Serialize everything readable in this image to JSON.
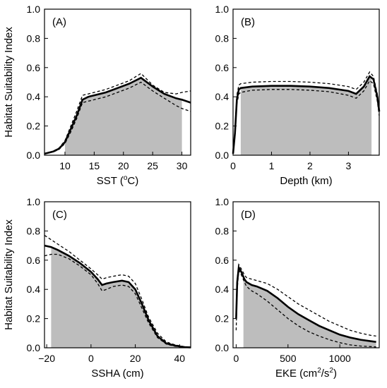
{
  "shared": {
    "ylabel": "Habitat Suitability Index"
  },
  "chart_data": [
    {
      "type": "line",
      "panel_label": "(A)",
      "xlabel_text": "SST (",
      "xlabel_sup": "o",
      "xlabel_after": "C)",
      "ylabel": "Habitat Suitability Index",
      "xlim": [
        6.5,
        31.5
      ],
      "ylim": [
        0,
        1
      ],
      "xticks": [
        10,
        15,
        20,
        25,
        30
      ],
      "yticks": [
        0.0,
        0.2,
        0.4,
        0.6,
        0.8,
        1.0
      ],
      "yticklabels": [
        "0.0",
        "0.2",
        "0.4",
        "0.6",
        "0.8",
        "1.0"
      ],
      "fill_range": [
        10,
        30
      ],
      "series": [
        {
          "role": "mean",
          "x": [
            6.5,
            7,
            8,
            9,
            10,
            11,
            12,
            13,
            14,
            15,
            17,
            19,
            21,
            23,
            25,
            27,
            29,
            30,
            31.5
          ],
          "y": [
            0.01,
            0.015,
            0.025,
            0.045,
            0.09,
            0.18,
            0.27,
            0.38,
            0.4,
            0.41,
            0.43,
            0.46,
            0.49,
            0.53,
            0.47,
            0.42,
            0.39,
            0.38,
            0.36
          ]
        },
        {
          "role": "upper",
          "x": [
            6.5,
            7,
            8,
            9,
            10,
            11,
            12,
            13,
            14,
            15,
            17,
            19,
            21,
            23,
            25,
            27,
            29,
            30,
            31.5
          ],
          "y": [
            0.01,
            0.015,
            0.028,
            0.05,
            0.1,
            0.2,
            0.3,
            0.41,
            0.42,
            0.43,
            0.45,
            0.48,
            0.51,
            0.56,
            0.48,
            0.43,
            0.42,
            0.43,
            0.44
          ]
        },
        {
          "role": "lower",
          "x": [
            6.5,
            7,
            8,
            9,
            10,
            11,
            12,
            13,
            14,
            15,
            17,
            19,
            21,
            23,
            25,
            27,
            29,
            30,
            31.5
          ],
          "y": [
            0.01,
            0.013,
            0.022,
            0.04,
            0.08,
            0.16,
            0.25,
            0.36,
            0.37,
            0.38,
            0.4,
            0.43,
            0.46,
            0.5,
            0.44,
            0.39,
            0.34,
            0.32,
            0.3
          ]
        }
      ]
    },
    {
      "type": "line",
      "panel_label": "(B)",
      "xlabel_text": "Depth (km)",
      "xlabel_sup": "",
      "xlabel_after": "",
      "ylabel": "",
      "xlim": [
        0,
        3.8
      ],
      "ylim": [
        0,
        1
      ],
      "xticks": [
        0,
        1,
        2,
        3
      ],
      "yticks": [
        0.0,
        0.2,
        0.4,
        0.6,
        0.8,
        1.0
      ],
      "yticklabels": [
        "0.0",
        "0.2",
        "0.4",
        "0.6",
        "0.8",
        "1.0"
      ],
      "fill_range": [
        0.2,
        3.6
      ],
      "series": [
        {
          "role": "mean",
          "x": [
            0,
            0.05,
            0.1,
            0.15,
            0.2,
            0.5,
            1.0,
            1.5,
            2.0,
            2.5,
            3.0,
            3.2,
            3.4,
            3.55,
            3.65,
            3.75,
            3.8
          ],
          "y": [
            0.01,
            0.15,
            0.38,
            0.45,
            0.46,
            0.47,
            0.475,
            0.475,
            0.47,
            0.46,
            0.44,
            0.42,
            0.47,
            0.54,
            0.52,
            0.4,
            0.3
          ]
        },
        {
          "role": "upper",
          "x": [
            0,
            0.05,
            0.1,
            0.15,
            0.2,
            0.5,
            1.0,
            1.5,
            2.0,
            2.5,
            3.0,
            3.2,
            3.4,
            3.55,
            3.65,
            3.75,
            3.8
          ],
          "y": [
            0.01,
            0.17,
            0.41,
            0.48,
            0.49,
            0.5,
            0.505,
            0.505,
            0.5,
            0.49,
            0.47,
            0.45,
            0.5,
            0.57,
            0.54,
            0.42,
            0.32
          ]
        },
        {
          "role": "lower",
          "x": [
            0,
            0.05,
            0.1,
            0.15,
            0.2,
            0.5,
            1.0,
            1.5,
            2.0,
            2.5,
            3.0,
            3.2,
            3.4,
            3.55,
            3.65,
            3.75,
            3.8
          ],
          "y": [
            0.01,
            0.13,
            0.35,
            0.42,
            0.43,
            0.445,
            0.45,
            0.45,
            0.445,
            0.435,
            0.41,
            0.39,
            0.44,
            0.51,
            0.49,
            0.37,
            0.27
          ]
        }
      ]
    },
    {
      "type": "line",
      "panel_label": "(C)",
      "xlabel_text": "SSHA (cm)",
      "xlabel_sup": "",
      "xlabel_after": "",
      "ylabel": "Habitat Suitability Index",
      "xlim": [
        -21,
        45
      ],
      "ylim": [
        0,
        1
      ],
      "xticks": [
        -20,
        0,
        20,
        40
      ],
      "xticklabels": [
        "−20",
        "0",
        "20",
        "40"
      ],
      "yticks": [
        0.0,
        0.2,
        0.4,
        0.6,
        0.8,
        1.0
      ],
      "yticklabels": [
        "0.0",
        "0.2",
        "0.4",
        "0.6",
        "0.8",
        "1.0"
      ],
      "fill_range": [
        -18,
        44
      ],
      "series": [
        {
          "role": "mean",
          "x": [
            -21,
            -18,
            -15,
            -10,
            -5,
            0,
            3,
            5,
            7,
            10,
            14,
            17,
            20,
            23,
            26,
            30,
            34,
            38,
            42,
            45
          ],
          "y": [
            0.7,
            0.69,
            0.67,
            0.63,
            0.58,
            0.52,
            0.47,
            0.43,
            0.44,
            0.45,
            0.46,
            0.45,
            0.4,
            0.3,
            0.19,
            0.08,
            0.03,
            0.015,
            0.005,
            0.003
          ]
        },
        {
          "role": "upper",
          "x": [
            -21,
            -18,
            -15,
            -10,
            -5,
            0,
            3,
            5,
            7,
            10,
            14,
            17,
            20,
            23,
            26,
            30,
            34,
            38,
            42,
            45
          ],
          "y": [
            0.77,
            0.74,
            0.71,
            0.66,
            0.6,
            0.54,
            0.5,
            0.47,
            0.48,
            0.49,
            0.5,
            0.49,
            0.44,
            0.33,
            0.21,
            0.1,
            0.04,
            0.02,
            0.008,
            0.004
          ]
        },
        {
          "role": "lower",
          "x": [
            -21,
            -18,
            -15,
            -10,
            -5,
            0,
            3,
            5,
            7,
            10,
            14,
            17,
            20,
            23,
            26,
            30,
            34,
            38,
            42,
            45
          ],
          "y": [
            0.63,
            0.64,
            0.64,
            0.61,
            0.56,
            0.5,
            0.44,
            0.39,
            0.4,
            0.42,
            0.43,
            0.42,
            0.37,
            0.27,
            0.17,
            0.07,
            0.025,
            0.01,
            0.004,
            0.002
          ]
        }
      ]
    },
    {
      "type": "line",
      "panel_label": "(D)",
      "xlabel_text": "EKE (cm",
      "xlabel_sup": "2",
      "xlabel_after": "/s",
      "xlabel_sup2": "2",
      "xlabel_end": ")",
      "ylabel": "",
      "xlim": [
        -30,
        1380
      ],
      "ylim": [
        0,
        1
      ],
      "xticks": [
        0,
        500,
        1000
      ],
      "yticks": [
        0.0,
        0.2,
        0.4,
        0.6,
        0.8,
        1.0
      ],
      "yticklabels": [
        "0.0",
        "0.2",
        "0.4",
        "0.6",
        "0.8",
        "1.0"
      ],
      "fill_range": [
        70,
        1350
      ],
      "series": [
        {
          "role": "mean",
          "x": [
            0,
            10,
            25,
            50,
            80,
            100,
            150,
            200,
            300,
            400,
            500,
            600,
            700,
            800,
            900,
            1000,
            1100,
            1200,
            1300,
            1350
          ],
          "y": [
            0.2,
            0.45,
            0.55,
            0.52,
            0.47,
            0.45,
            0.43,
            0.42,
            0.39,
            0.34,
            0.28,
            0.23,
            0.19,
            0.15,
            0.12,
            0.09,
            0.07,
            0.055,
            0.045,
            0.04
          ]
        },
        {
          "role": "upper",
          "x": [
            0,
            10,
            25,
            50,
            80,
            100,
            150,
            200,
            300,
            400,
            500,
            600,
            700,
            800,
            900,
            1000,
            1100,
            1200,
            1300,
            1350
          ],
          "y": [
            0.22,
            0.47,
            0.57,
            0.54,
            0.5,
            0.48,
            0.47,
            0.46,
            0.44,
            0.4,
            0.35,
            0.3,
            0.26,
            0.22,
            0.18,
            0.15,
            0.12,
            0.1,
            0.085,
            0.08
          ]
        },
        {
          "role": "lower",
          "x": [
            0,
            10,
            25,
            50,
            80,
            100,
            150,
            200,
            300,
            400,
            500,
            600,
            700,
            800,
            900,
            1000,
            1100,
            1200,
            1300,
            1350
          ],
          "y": [
            0.12,
            0.4,
            0.53,
            0.5,
            0.45,
            0.42,
            0.39,
            0.37,
            0.32,
            0.26,
            0.2,
            0.15,
            0.11,
            0.08,
            0.055,
            0.035,
            0.02,
            0.012,
            0.008,
            0.006
          ]
        }
      ]
    }
  ]
}
